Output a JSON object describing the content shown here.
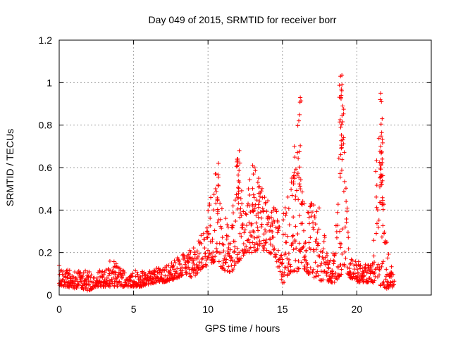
{
  "chart_data": {
    "type": "scatter",
    "title": "Day 049 of 2015, SRMTID for receiver borr",
    "xlabel": "GPS time / hours",
    "ylabel": "SRMTID / TECUs",
    "xlim": [
      0,
      25
    ],
    "ylim": [
      0,
      1.2
    ],
    "xticks": [
      0,
      5,
      10,
      15,
      20
    ],
    "xtick_labels": [
      "0",
      "5",
      "10",
      "15",
      "20"
    ],
    "yticks": [
      0,
      0.2,
      0.4,
      0.6,
      0.8,
      1.0,
      1.2
    ],
    "ytick_labels": [
      "0",
      "0.2",
      "0.4",
      "0.6",
      "0.8",
      "1",
      "1.2"
    ],
    "grid": true,
    "marker": "plus",
    "color": "#ff0000",
    "series": [
      {
        "name": "SRMTID",
        "envelope": {
          "x": [
            0,
            0.5,
            1,
            1.5,
            2,
            2.5,
            3,
            3.5,
            4,
            4.5,
            5,
            5.5,
            6,
            6.5,
            7,
            7.5,
            8,
            8.5,
            9,
            9.5,
            10,
            10.5,
            11,
            11.5,
            12,
            12.5,
            13,
            13.5,
            14,
            14.5,
            15,
            15.5,
            16,
            16.5,
            17,
            17.5,
            18,
            18.5,
            19,
            19.5,
            20,
            20.5,
            21,
            21.5,
            22,
            22.5
          ],
          "low": [
            0.04,
            0.04,
            0.03,
            0.03,
            0.02,
            0.04,
            0.04,
            0.04,
            0.04,
            0.04,
            0.04,
            0.04,
            0.05,
            0.06,
            0.06,
            0.07,
            0.08,
            0.1,
            0.08,
            0.12,
            0.14,
            0.16,
            0.12,
            0.1,
            0.15,
            0.2,
            0.2,
            0.22,
            0.2,
            0.18,
            0.05,
            0.1,
            0.1,
            0.12,
            0.08,
            0.07,
            0.06,
            0.06,
            0.1,
            0.08,
            0.06,
            0.06,
            0.06,
            0.04,
            0.03,
            0.03
          ],
          "high": [
            0.14,
            0.12,
            0.11,
            0.12,
            0.11,
            0.12,
            0.12,
            0.17,
            0.14,
            0.12,
            0.12,
            0.11,
            0.12,
            0.13,
            0.13,
            0.16,
            0.18,
            0.2,
            0.22,
            0.28,
            0.4,
            0.62,
            0.44,
            0.3,
            0.68,
            0.44,
            0.62,
            0.55,
            0.45,
            0.42,
            0.36,
            0.58,
            0.7,
            0.42,
            0.45,
            0.42,
            0.22,
            0.2,
            1.04,
            0.18,
            0.16,
            0.15,
            0.14,
            0.95,
            0.25,
            0.1
          ],
          "spikes": [
            [
              16.2,
              0.93
            ],
            [
              16.1,
              0.82
            ],
            [
              15.8,
              0.7
            ],
            [
              18.9,
              1.03
            ],
            [
              19.0,
              0.99
            ],
            [
              18.95,
              0.94
            ],
            [
              19.05,
              0.89
            ],
            [
              21.6,
              0.95
            ],
            [
              21.65,
              0.91
            ],
            [
              21.7,
              0.83
            ],
            [
              21.6,
              0.7
            ],
            [
              21.7,
              0.64
            ],
            [
              12.1,
              0.68
            ],
            [
              12.0,
              0.64
            ],
            [
              10.7,
              0.62
            ],
            [
              13.0,
              0.61
            ],
            [
              13.4,
              0.55
            ]
          ]
        }
      }
    ]
  }
}
